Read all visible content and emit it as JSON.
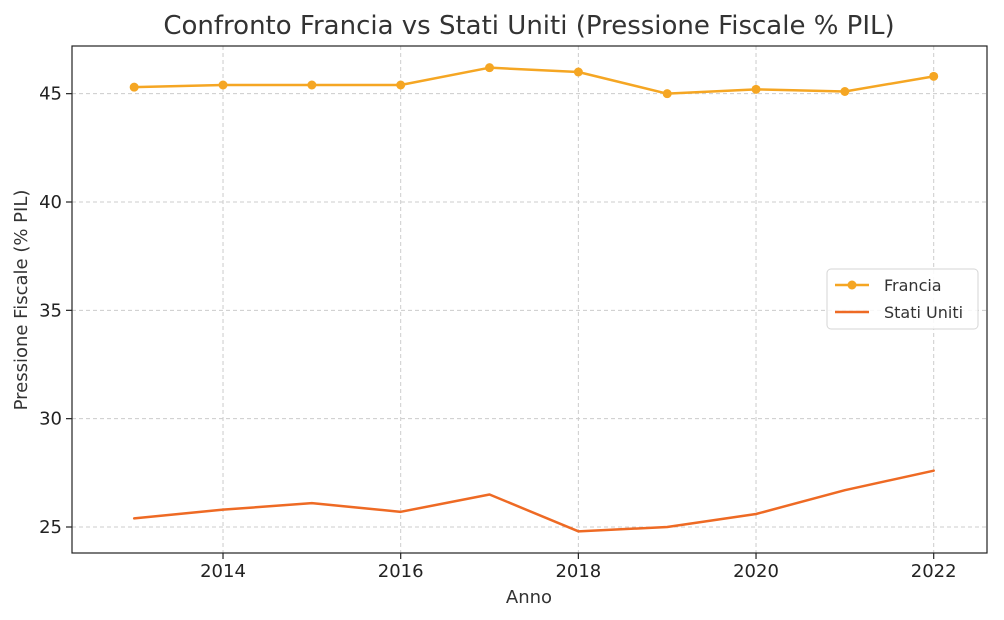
{
  "chart_data": {
    "type": "line",
    "title": "Confronto Francia vs Stati Uniti (Pressione Fiscale % PIL)",
    "xlabel": "Anno",
    "ylabel": "Pressione Fiscale (% PIL)",
    "x": [
      2013,
      2014,
      2015,
      2016,
      2017,
      2018,
      2019,
      2020,
      2021,
      2022
    ],
    "xlim": [
      2012.3,
      2022.6
    ],
    "ylim": [
      23.8,
      47.2
    ],
    "xticks": [
      2014,
      2016,
      2018,
      2020,
      2022
    ],
    "yticks": [
      25,
      30,
      35,
      40,
      45
    ],
    "grid": true,
    "legend_position": "center-right",
    "series": [
      {
        "name": "Francia",
        "values": [
          45.3,
          45.4,
          45.4,
          45.4,
          46.2,
          46.0,
          45.0,
          45.2,
          45.1,
          45.8
        ],
        "color": "#F5A623",
        "marker": "circle"
      },
      {
        "name": "Stati Uniti",
        "values": [
          25.4,
          25.8,
          26.1,
          25.7,
          26.5,
          24.8,
          25.0,
          25.6,
          26.7,
          27.6
        ],
        "color": "#EE6A24",
        "marker": "none"
      }
    ]
  }
}
